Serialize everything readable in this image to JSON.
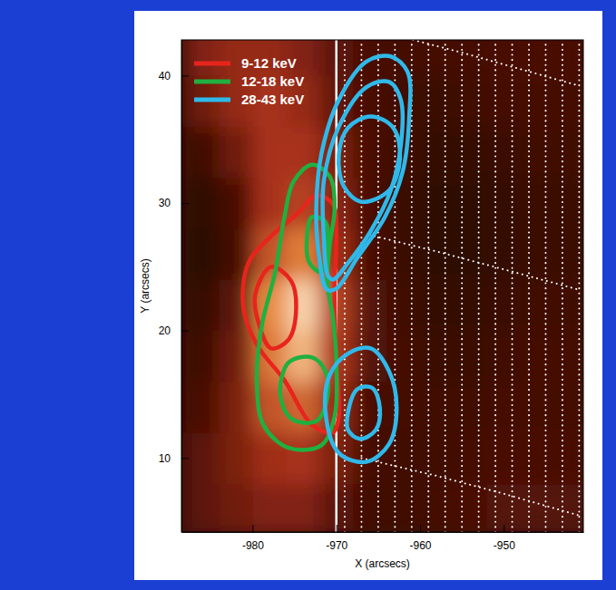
{
  "chart_data": {
    "type": "contour",
    "x_label": "X (arcsecs)",
    "y_label": "Y (arcsecs)",
    "xlim": [
      -988.5,
      -940.5
    ],
    "ylim": [
      4.2,
      42.8
    ],
    "xticks": [
      -980,
      -970,
      -960,
      -950
    ],
    "yticks": [
      10,
      20,
      30,
      40
    ],
    "legend": "upper left",
    "heatmap": {
      "x": [
        -986,
        -982,
        -978,
        -974,
        -970,
        -966,
        -962,
        -958,
        -954,
        -950,
        -946,
        -942
      ],
      "y": [
        6,
        10,
        14,
        18,
        22,
        26,
        30,
        34,
        38,
        42
      ],
      "zlim": [
        0,
        100
      ],
      "cells": [
        [
          30,
          35,
          40,
          40,
          30,
          20,
          20,
          22,
          25,
          28,
          28,
          28
        ],
        [
          30,
          38,
          48,
          50,
          38,
          22,
          20,
          20,
          22,
          25,
          25,
          25
        ],
        [
          25,
          38,
          60,
          65,
          45,
          25,
          22,
          20,
          20,
          22,
          22,
          22
        ],
        [
          20,
          35,
          70,
          85,
          52,
          28,
          22,
          18,
          18,
          20,
          22,
          22
        ],
        [
          15,
          30,
          75,
          92,
          55,
          28,
          20,
          15,
          15,
          18,
          20,
          20
        ],
        [
          10,
          22,
          60,
          72,
          48,
          25,
          18,
          12,
          12,
          15,
          18,
          18
        ],
        [
          12,
          25,
          50,
          55,
          42,
          25,
          18,
          12,
          12,
          15,
          18,
          18
        ],
        [
          20,
          35,
          50,
          50,
          38,
          25,
          20,
          15,
          15,
          18,
          20,
          20
        ],
        [
          35,
          45,
          50,
          45,
          32,
          25,
          20,
          18,
          20,
          22,
          22,
          22
        ],
        [
          40,
          45,
          45,
          40,
          30,
          25,
          22,
          22,
          22,
          25,
          25,
          25
        ]
      ]
    },
    "lines": [
      {
        "color": "#ffffff",
        "line_style": "solid",
        "x": [
          -970,
          -970
        ],
        "y": [
          4.2,
          42.8
        ]
      },
      {
        "color": "#ffffff",
        "line_style": "dotted",
        "x": [
          -969,
          -969
        ],
        "y": [
          4.2,
          42.8
        ]
      },
      {
        "color": "#ffffff",
        "line_style": "dotted",
        "x": [
          -967,
          -967
        ],
        "y": [
          4.2,
          42.8
        ]
      },
      {
        "color": "#ffffff",
        "line_style": "dotted",
        "x": [
          -965,
          -965
        ],
        "y": [
          4.2,
          42.8
        ]
      },
      {
        "color": "#ffffff",
        "line_style": "dotted",
        "x": [
          -963,
          -963
        ],
        "y": [
          4.2,
          42.8
        ]
      },
      {
        "color": "#ffffff",
        "line_style": "dotted",
        "x": [
          -961,
          -961
        ],
        "y": [
          4.2,
          42.8
        ]
      },
      {
        "color": "#ffffff",
        "line_style": "dotted",
        "x": [
          -959,
          -959
        ],
        "y": [
          4.2,
          42.8
        ]
      },
      {
        "color": "#ffffff",
        "line_style": "dotted",
        "x": [
          -957,
          -957
        ],
        "y": [
          4.2,
          42.8
        ]
      },
      {
        "color": "#ffffff",
        "line_style": "dotted",
        "x": [
          -955,
          -955
        ],
        "y": [
          4.2,
          42.8
        ]
      },
      {
        "color": "#ffffff",
        "line_style": "dotted",
        "x": [
          -953,
          -953
        ],
        "y": [
          4.2,
          42.8
        ]
      },
      {
        "color": "#ffffff",
        "line_style": "dotted",
        "x": [
          -951,
          -951
        ],
        "y": [
          4.2,
          42.8
        ]
      },
      {
        "color": "#ffffff",
        "line_style": "dotted",
        "x": [
          -949,
          -949
        ],
        "y": [
          4.2,
          42.8
        ]
      },
      {
        "color": "#ffffff",
        "line_style": "dotted",
        "x": [
          -947,
          -947
        ],
        "y": [
          4.2,
          42.8
        ]
      },
      {
        "color": "#ffffff",
        "line_style": "dotted",
        "x": [
          -945,
          -945
        ],
        "y": [
          4.2,
          42.8
        ]
      },
      {
        "color": "#ffffff",
        "line_style": "dotted",
        "x": [
          -943,
          -943
        ],
        "y": [
          4.2,
          42.8
        ]
      },
      {
        "color": "#ffffff",
        "line_style": "dotted",
        "x": [
          -941,
          -941
        ],
        "y": [
          4.2,
          42.8
        ]
      },
      {
        "color": "#ffffff",
        "line_style": "dotted",
        "x": [
          -962,
          -955,
          -948,
          -941
        ],
        "y": [
          43,
          41.8,
          40.5,
          39.2
        ]
      },
      {
        "color": "#ffffff",
        "line_style": "dotted",
        "x": [
          -966,
          -958,
          -950,
          -941
        ],
        "y": [
          27.5,
          26.2,
          24.8,
          23.2
        ]
      },
      {
        "color": "#ffffff",
        "line_style": "dotted",
        "x": [
          -967,
          -958,
          -950,
          -941
        ],
        "y": [
          10,
          8.6,
          7.2,
          5.5
        ]
      }
    ],
    "series": [
      {
        "name": "9-12 keV",
        "color": "#e8241c",
        "contours": [
          {
            "x": [
              -972.4,
              -970.4,
              -970.0,
              -970.2,
              -970.0,
              -969.7,
              -970.4,
              -972.9,
              -976.2,
              -979.5,
              -981.1,
              -980.5,
              -977.8,
              -974.6
            ],
            "y": [
              30.6,
              29.9,
              27.4,
              23.2,
              17.5,
              13.3,
              12.0,
              12.6,
              16.1,
              18.9,
              21.8,
              25.3,
              27.4,
              29.2
            ]
          },
          {
            "x": [
              -977.8,
              -975.4,
              -974.8,
              -975.7,
              -977.8,
              -979.2,
              -979.7
            ],
            "y": [
              25.0,
              23.9,
              21.8,
              19.3,
              18.6,
              20.4,
              22.8
            ]
          }
        ]
      },
      {
        "name": "12-18 keV",
        "color": "#1fb040",
        "contours": [
          {
            "x": [
              -972.9,
              -970.8,
              -970.2,
              -970.8,
              -971.1,
              -970.4,
              -970.0,
              -970.2,
              -971.8,
              -975.7,
              -978.7,
              -979.5,
              -978.9,
              -977.3,
              -976.2,
              -975.1
            ],
            "y": [
              33.0,
              32.1,
              29.6,
              26.7,
              23.9,
              21.0,
              17.5,
              13.3,
              11.0,
              10.8,
              12.6,
              16.1,
              20.4,
              24.6,
              28.9,
              31.7
            ]
          },
          {
            "x": [
              -972.9,
              -971.3,
              -971.1,
              -971.8,
              -973.2,
              -973.5
            ],
            "y": [
              28.9,
              28.5,
              26.4,
              24.6,
              25.3,
              27.4
            ]
          },
          {
            "x": [
              -975.7,
              -972.9,
              -971.3,
              -971.1,
              -972.4,
              -975.4,
              -976.7
            ],
            "y": [
              17.5,
              17.9,
              16.8,
              14.7,
              12.9,
              13.1,
              15.0
            ]
          }
        ]
      },
      {
        "name": "28-43 keV",
        "color": "#2fb9ea",
        "contours": [
          {
            "x": [
              -971.1,
              -972.1,
              -972.4,
              -971.8,
              -969.7,
              -966.4,
              -963.5,
              -961.5,
              -961.3,
              -962.1,
              -964.2,
              -967.5,
              -970.0
            ],
            "y": [
              23.2,
              26.0,
              29.6,
              33.8,
              38.1,
              41.1,
              41.5,
              40.3,
              36.7,
              32.4,
              28.9,
              25.7,
              23.3
            ]
          },
          {
            "x": [
              -971.0,
              -971.5,
              -971.5,
              -969.7,
              -966.4,
              -963.7,
              -962.3,
              -962.3,
              -963.5,
              -965.9,
              -968.6,
              -970.4
            ],
            "y": [
              24.3,
              27.4,
              31.7,
              36.0,
              39.1,
              39.5,
              38.1,
              34.5,
              31.0,
              27.8,
              25.3,
              24.0
            ]
          },
          {
            "x": [
              -969.7,
              -968.6,
              -965.9,
              -963.2,
              -962.4,
              -963.7,
              -967.0,
              -969.1
            ],
            "y": [
              33.8,
              35.9,
              36.8,
              35.9,
              33.5,
              31.0,
              30.1,
              31.3
            ]
          },
          {
            "x": [
              -971.3,
              -970.8,
              -968.6,
              -965.9,
              -963.7,
              -962.8,
              -963.7,
              -966.4,
              -969.7
            ],
            "y": [
              13.6,
              16.5,
              18.2,
              18.6,
              16.8,
              14.0,
              11.1,
              9.7,
              10.4
            ]
          },
          {
            "x": [
              -968.6,
              -967.5,
              -965.7,
              -964.8,
              -965.3,
              -967.2,
              -968.6
            ],
            "y": [
              13.6,
              15.4,
              15.5,
              13.9,
              12.2,
              11.5,
              12.2
            ]
          }
        ]
      }
    ]
  }
}
